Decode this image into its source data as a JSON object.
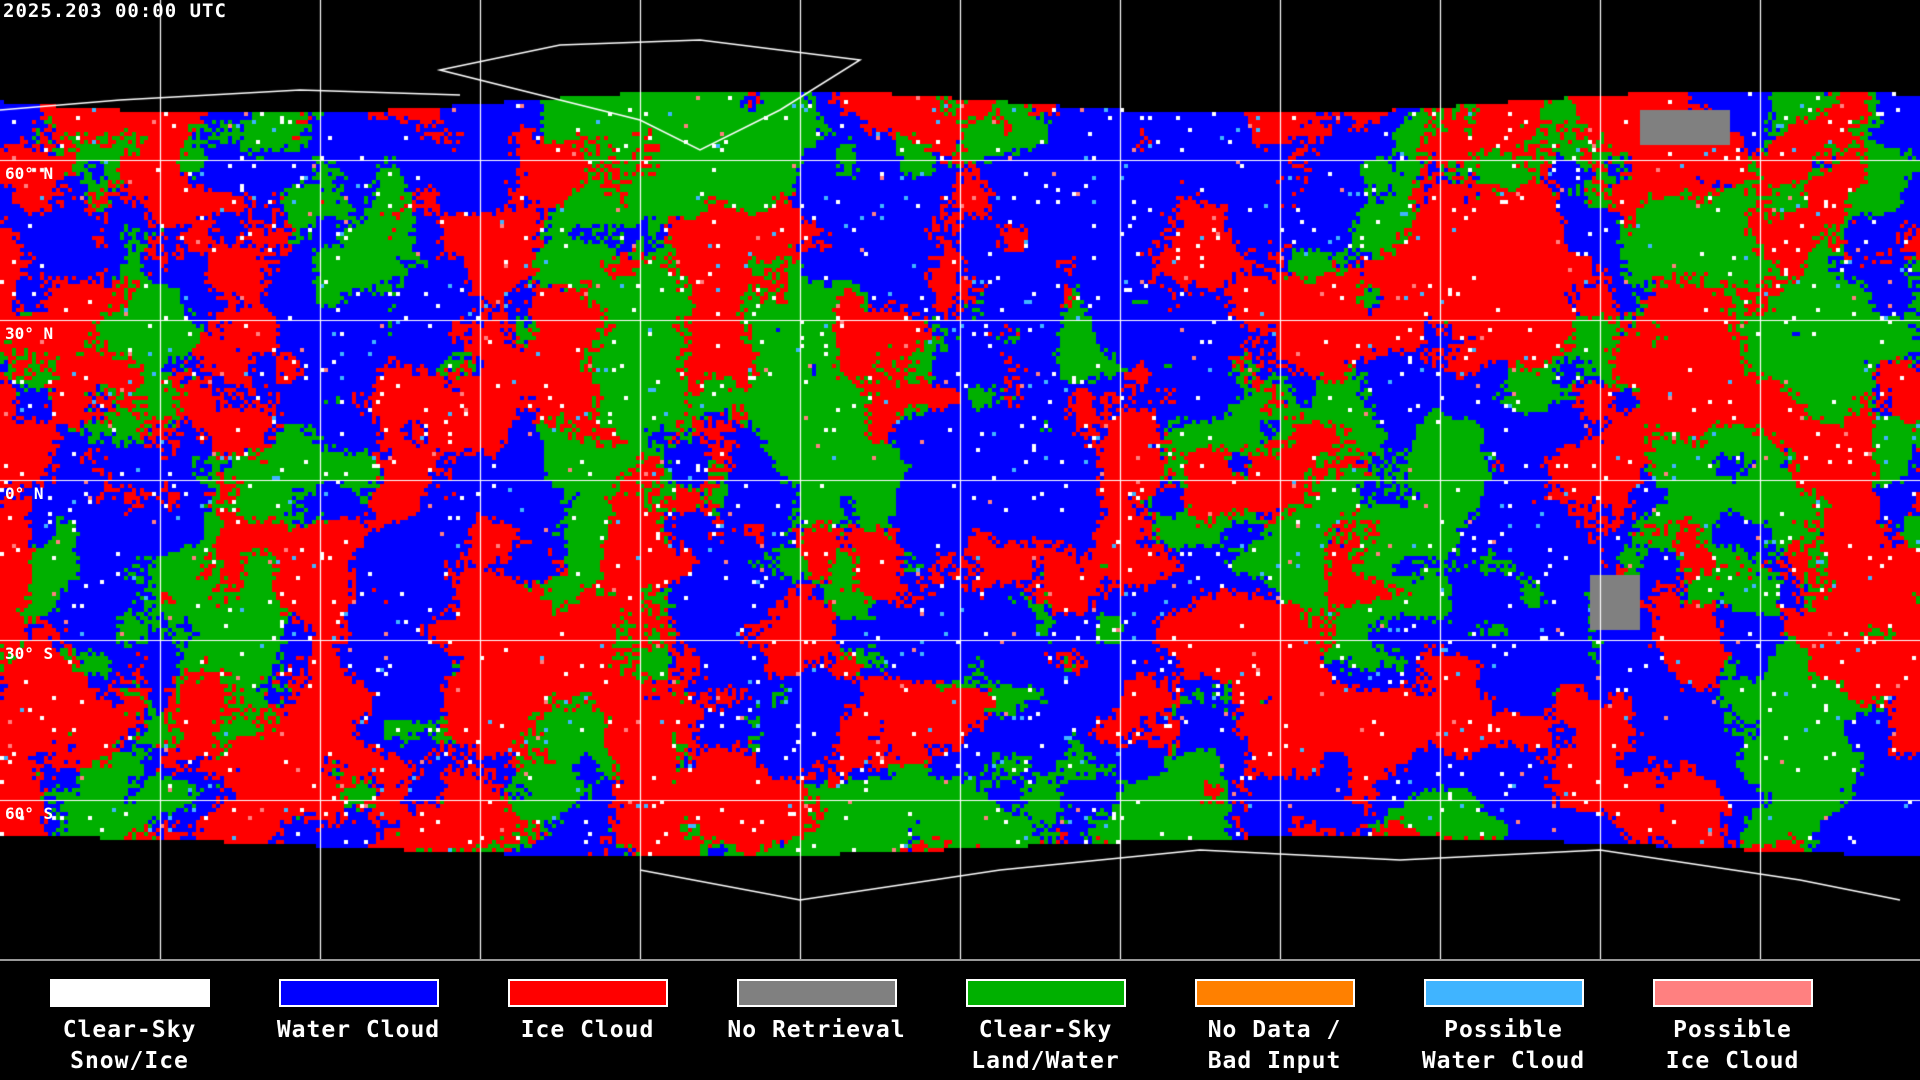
{
  "title": "2025.203 00:00 UTC",
  "lat_labels": [
    "60° N",
    "30° N",
    "0° N",
    "30° S",
    "60° S"
  ],
  "legend": [
    {
      "line1": "Clear-Sky",
      "line2": "Snow/Ice",
      "color": "#ffffff"
    },
    {
      "line1": "Water Cloud",
      "line2": "",
      "color": "#0000ff"
    },
    {
      "line1": "Ice Cloud",
      "line2": "",
      "color": "#ff0000"
    },
    {
      "line1": "No Retrieval",
      "line2": "",
      "color": "#808080"
    },
    {
      "line1": "Clear-Sky",
      "line2": "Land/Water",
      "color": "#00b000"
    },
    {
      "line1": "No Data /",
      "line2": "Bad Input",
      "color": "#ff8000"
    },
    {
      "line1": "Possible",
      "line2": "Water Cloud",
      "color": "#40b4ff"
    },
    {
      "line1": "Possible",
      "line2": "Ice Cloud",
      "color": "#ff8080"
    }
  ],
  "map": {
    "projection": "equirectangular",
    "grid_spacing_deg": 30,
    "grid_color": "#ffffff",
    "coastline_color": "#ffffff",
    "background": "#000000"
  }
}
